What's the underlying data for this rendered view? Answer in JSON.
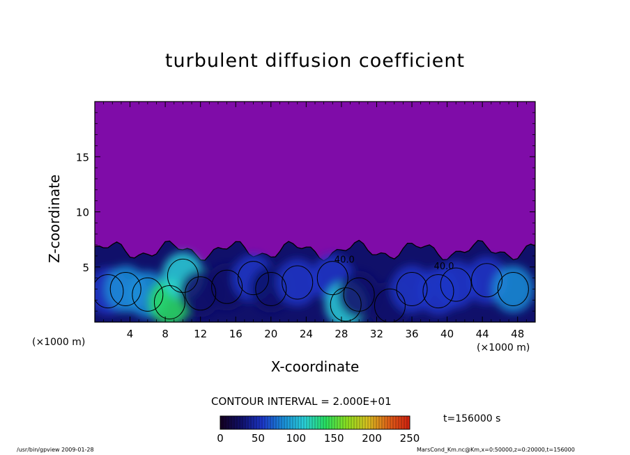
{
  "chart_data": {
    "type": "heatmap",
    "title": "turbulent diffusion coefficient",
    "xlabel": "X-coordinate",
    "ylabel": "Z-coordinate",
    "x_unit": "(×1000 m)",
    "z_unit": "(×1000 m)",
    "xlim": [
      0,
      50
    ],
    "ylim": [
      0,
      20
    ],
    "x_ticks": [
      4,
      8,
      12,
      16,
      20,
      24,
      28,
      32,
      36,
      40,
      44,
      48
    ],
    "y_ticks": [
      5,
      10,
      15
    ],
    "contour_interval_label": "CONTOUR INTERVAL = 2.000E+01",
    "contour_labels": [
      "40.0",
      "40.0"
    ],
    "time_label": "t=156000 s",
    "colorbar": {
      "range": [
        0,
        250
      ],
      "ticks": [
        0,
        50,
        100,
        150,
        200,
        250
      ],
      "colors": [
        "#140020",
        "#10106a",
        "#1c36c8",
        "#1a8ed8",
        "#2ad0d8",
        "#28e060",
        "#8ce020",
        "#d8c020",
        "#e06018",
        "#d02010"
      ]
    },
    "background_color": "#7f0ca8",
    "boundary_layer_top_km": 6.5,
    "cells": [
      {
        "x": 1.5,
        "z": 2.8,
        "v": 60
      },
      {
        "x": 3.5,
        "z": 3.0,
        "v": 80
      },
      {
        "x": 6.0,
        "z": 2.5,
        "v": 90
      },
      {
        "x": 8.5,
        "z": 1.8,
        "v": 130
      },
      {
        "x": 10.0,
        "z": 4.2,
        "v": 110
      },
      {
        "x": 12.0,
        "z": 2.6,
        "v": 40
      },
      {
        "x": 15.0,
        "z": 3.2,
        "v": 35
      },
      {
        "x": 18.0,
        "z": 4.0,
        "v": 55
      },
      {
        "x": 20.0,
        "z": 3.0,
        "v": 30
      },
      {
        "x": 23.0,
        "z": 3.6,
        "v": 60
      },
      {
        "x": 27.0,
        "z": 4.0,
        "v": 70
      },
      {
        "x": 28.5,
        "z": 1.6,
        "v": 120
      },
      {
        "x": 30.0,
        "z": 2.5,
        "v": 45
      },
      {
        "x": 33.5,
        "z": 1.5,
        "v": 40
      },
      {
        "x": 36.0,
        "z": 3.0,
        "v": 55
      },
      {
        "x": 39.0,
        "z": 2.8,
        "v": 70
      },
      {
        "x": 41.0,
        "z": 3.4,
        "v": 55
      },
      {
        "x": 44.5,
        "z": 3.8,
        "v": 60
      },
      {
        "x": 47.5,
        "z": 3.0,
        "v": 75
      }
    ]
  },
  "footer": {
    "program": "/usr/bin/gpview   2009-01-28",
    "source": "MarsCond_Km.nc@Km,x=0:50000,z=0:20000,t=156000"
  }
}
